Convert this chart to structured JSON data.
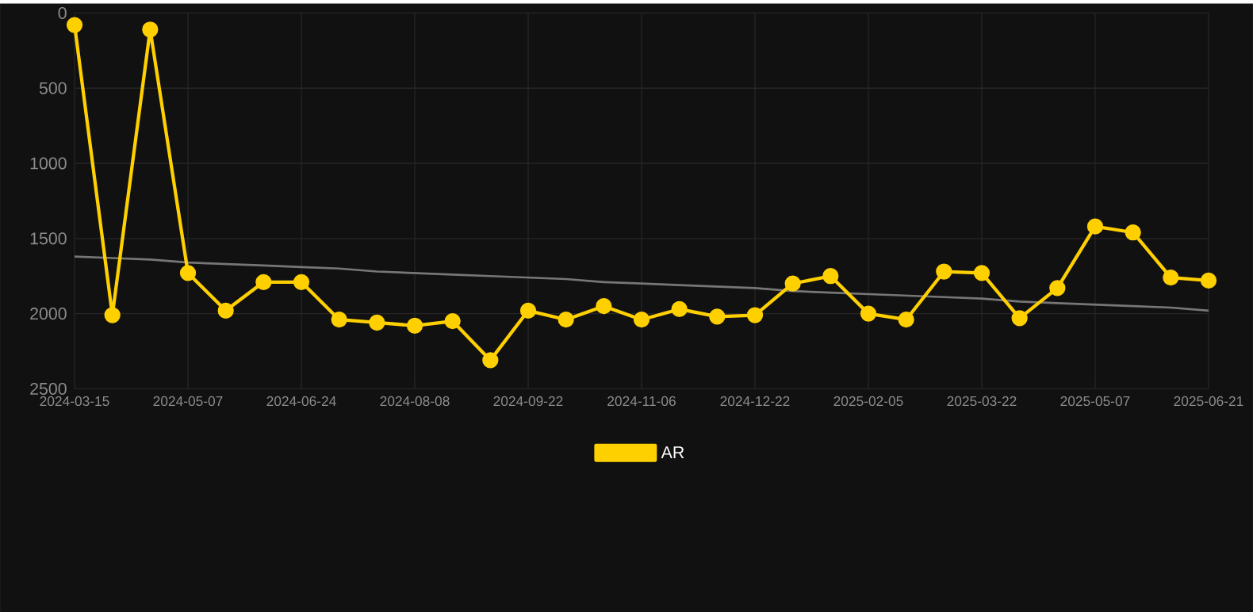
{
  "chart_data": {
    "type": "line",
    "categories": [
      "2024-03-15",
      null,
      null,
      "2024-05-07",
      null,
      null,
      "2024-06-24",
      null,
      null,
      "2024-08-08",
      null,
      null,
      "2024-09-22",
      null,
      null,
      "2024-11-06",
      null,
      null,
      "2024-12-22",
      null,
      null,
      "2025-02-05",
      null,
      null,
      "2025-03-22",
      null,
      null,
      "2025-05-07",
      null,
      null,
      "2025-06-21"
    ],
    "series": [
      {
        "name": "AR",
        "color": "#ffd000",
        "marker": "circle",
        "values": [
          80,
          2010,
          110,
          1730,
          1980,
          1790,
          1790,
          2040,
          2060,
          2080,
          2050,
          2310,
          1980,
          2040,
          1950,
          2040,
          1970,
          2020,
          2010,
          1800,
          1750,
          2000,
          2040,
          1720,
          1730,
          2030,
          1830,
          1420,
          1460,
          1760,
          1780
        ]
      },
      {
        "color": "#777777",
        "marker": "none",
        "values": [
          1620,
          1630,
          1640,
          1660,
          1670,
          1680,
          1690,
          1700,
          1720,
          1730,
          1740,
          1750,
          1760,
          1770,
          1790,
          1800,
          1810,
          1820,
          1830,
          1850,
          1860,
          1870,
          1880,
          1890,
          1900,
          1920,
          1930,
          1940,
          1950,
          1960,
          1980
        ]
      }
    ],
    "ylim": [
      2500,
      0
    ],
    "yticks": [
      0,
      500,
      1000,
      1500,
      2000,
      2500
    ],
    "grid": true,
    "legend": "bottom",
    "line_style": "solid"
  }
}
